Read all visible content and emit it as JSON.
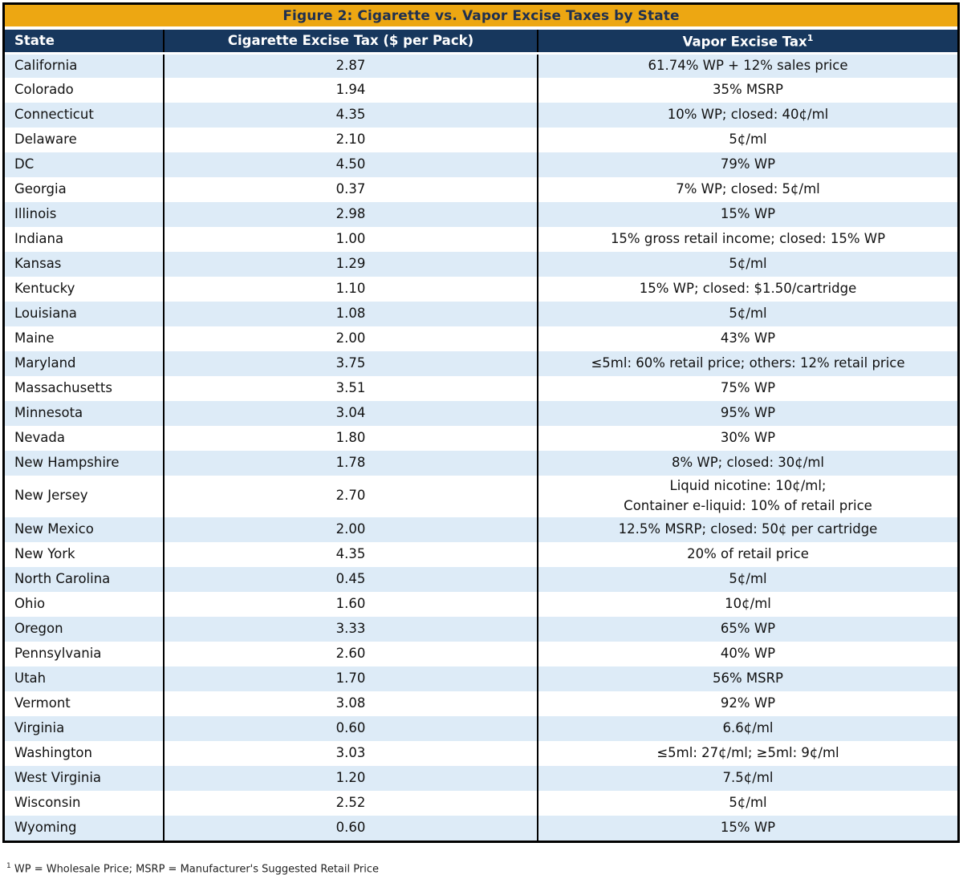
{
  "figure": {
    "title": "Figure 2: Cigarette vs. Vapor Excise Taxes by State",
    "vapor_superscript": "1",
    "footnote": {
      "sup": "1",
      "text": " WP = Wholesale Price; MSRP = Manufacturer's Suggested Retail Price"
    },
    "colors": {
      "title_bg": "#EDA712",
      "title_text": "#1F3050",
      "header_bg": "#17375D",
      "header_text": "#FFFFFF",
      "row_alt_bg": "#DDEBF7",
      "row_bg": "#FFFFFF",
      "border": "#000000",
      "cell_text": "#111111"
    }
  },
  "chart_data": {
    "type": "table",
    "title": "Figure 2: Cigarette vs. Vapor Excise Taxes by State",
    "columns": [
      "State",
      "Cigarette Excise Tax ($ per Pack)",
      "Vapor Excise Tax"
    ],
    "rows": [
      [
        "California",
        "2.87",
        "61.74% WP + 12% sales price"
      ],
      [
        "Colorado",
        "1.94",
        "35% MSRP"
      ],
      [
        "Connecticut",
        "4.35",
        "10% WP; closed: 40¢/ml"
      ],
      [
        "Delaware",
        "2.10",
        "5¢/ml"
      ],
      [
        "DC",
        "4.50",
        "79% WP"
      ],
      [
        "Georgia",
        "0.37",
        "7% WP; closed: 5¢/ml"
      ],
      [
        "Illinois",
        "2.98",
        "15% WP"
      ],
      [
        "Indiana",
        "1.00",
        "15% gross retail income; closed: 15% WP"
      ],
      [
        "Kansas",
        "1.29",
        "5¢/ml"
      ],
      [
        "Kentucky",
        "1.10",
        "15% WP; closed: $1.50/cartridge"
      ],
      [
        "Louisiana",
        "1.08",
        "5¢/ml"
      ],
      [
        "Maine",
        "2.00",
        "43% WP"
      ],
      [
        "Maryland",
        "3.75",
        "≤5ml: 60% retail price; others: 12% retail price"
      ],
      [
        "Massachusetts",
        "3.51",
        "75% WP"
      ],
      [
        "Minnesota",
        "3.04",
        "95% WP"
      ],
      [
        "Nevada",
        "1.80",
        "30% WP"
      ],
      [
        "New Hampshire",
        "1.78",
        "8% WP; closed: 30¢/ml"
      ],
      [
        "New Jersey",
        "2.70",
        "Liquid nicotine: 10¢/ml;\nContainer e-liquid: 10% of retail price"
      ],
      [
        "New Mexico",
        "2.00",
        "12.5% MSRP; closed: 50¢ per cartridge"
      ],
      [
        "New York",
        "4.35",
        "20% of retail price"
      ],
      [
        "North Carolina",
        "0.45",
        "5¢/ml"
      ],
      [
        "Ohio",
        "1.60",
        "10¢/ml"
      ],
      [
        "Oregon",
        "3.33",
        "65% WP"
      ],
      [
        "Pennsylvania",
        "2.60",
        "40% WP"
      ],
      [
        "Utah",
        "1.70",
        "56% MSRP"
      ],
      [
        "Vermont",
        "3.08",
        "92% WP"
      ],
      [
        "Virginia",
        "0.60",
        "6.6¢/ml"
      ],
      [
        "Washington",
        "3.03",
        "≤5ml: 27¢/ml; ≥5ml: 9¢/ml"
      ],
      [
        "West Virginia",
        "1.20",
        "7.5¢/ml"
      ],
      [
        "Wisconsin",
        "2.52",
        "5¢/ml"
      ],
      [
        "Wyoming",
        "0.60",
        "15% WP"
      ]
    ]
  }
}
